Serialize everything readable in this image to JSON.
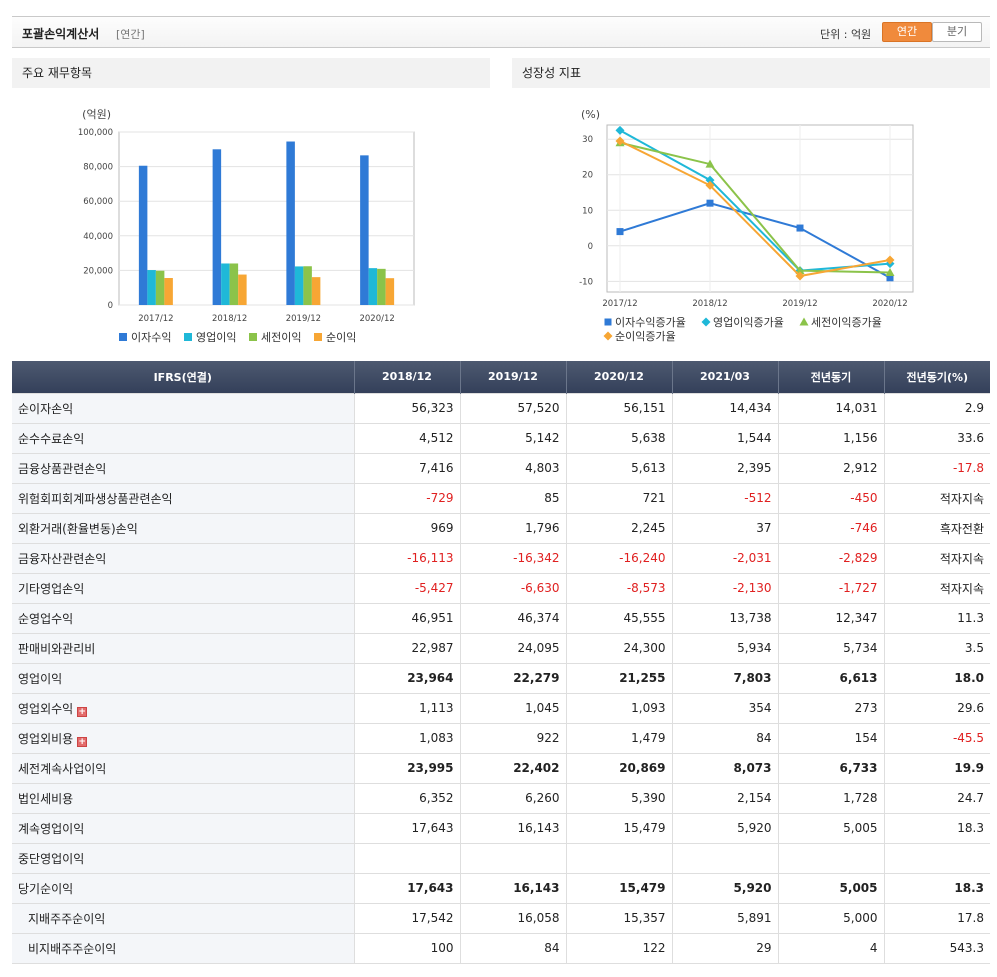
{
  "header": {
    "title": "포괄손익계산서",
    "period_tag": "[연간]",
    "unit_label": "단위 : 억원",
    "btn_annual": "연간",
    "btn_quarter": "분기"
  },
  "panels": {
    "left_title": "주요 재무항목",
    "right_title": "성장성 지표"
  },
  "chart_data": [
    {
      "type": "bar",
      "title": "주요 재무항목",
      "ylabel": "(억원)",
      "ylim": [
        0,
        100000
      ],
      "yticks": [
        0,
        20000,
        40000,
        60000,
        80000,
        100000
      ],
      "ytick_labels": [
        "0",
        "20,000",
        "40,000",
        "60,000",
        "80,000",
        "100,000"
      ],
      "categories": [
        "2017/12",
        "2018/12",
        "2019/12",
        "2020/12"
      ],
      "legend_position": "bottom",
      "grid": true,
      "series": [
        {
          "name": "이자수익",
          "color": "#2f7ad6",
          "values": [
            80500,
            90000,
            94500,
            86500
          ]
        },
        {
          "name": "영업이익",
          "color": "#1fb8d8",
          "values": [
            20200,
            24000,
            22300,
            21300
          ]
        },
        {
          "name": "세전이익",
          "color": "#8bc34a",
          "values": [
            19800,
            24000,
            22400,
            20900
          ]
        },
        {
          "name": "순이익",
          "color": "#f7a634",
          "values": [
            15600,
            17600,
            16100,
            15500
          ]
        }
      ]
    },
    {
      "type": "line",
      "title": "성장성 지표",
      "ylabel": "(%)",
      "ylim": [
        -13,
        34
      ],
      "yticks": [
        -10,
        0,
        10,
        20,
        30
      ],
      "categories": [
        "2017/12",
        "2018/12",
        "2019/12",
        "2020/12"
      ],
      "legend_position": "bottom",
      "grid": true,
      "series": [
        {
          "name": "이자수익증가율",
          "color": "#2f7ad6",
          "marker": "square",
          "values": [
            4,
            12,
            5,
            -9
          ]
        },
        {
          "name": "영업이익증가율",
          "color": "#1fb8d8",
          "marker": "diamond",
          "values": [
            32.5,
            18.5,
            -7,
            -5
          ]
        },
        {
          "name": "세전이익증가율",
          "color": "#8bc34a",
          "marker": "triangle",
          "values": [
            29,
            23,
            -7,
            -7.5
          ]
        },
        {
          "name": "순이익증가율",
          "color": "#f7a634",
          "marker": "diamond",
          "values": [
            29.5,
            17,
            -8.5,
            -4
          ]
        }
      ]
    }
  ],
  "table": {
    "headers": [
      "IFRS(연결)",
      "2018/12",
      "2019/12",
      "2020/12",
      "2021/03",
      "전년동기",
      "전년동기(%)"
    ],
    "rows": [
      {
        "label": "순이자손익",
        "values": [
          "56,323",
          "57,520",
          "56,151",
          "14,434",
          "14,031",
          "2.9"
        ]
      },
      {
        "label": "순수수료손익",
        "values": [
          "4,512",
          "5,142",
          "5,638",
          "1,544",
          "1,156",
          "33.6"
        ]
      },
      {
        "label": "금융상품관련손익",
        "values": [
          "7,416",
          "4,803",
          "5,613",
          "2,395",
          "2,912",
          "-17.8"
        ]
      },
      {
        "label": "위험회피회계파생상품관련손익",
        "values": [
          "-729",
          "85",
          "721",
          "-512",
          "-450",
          "적자지속"
        ]
      },
      {
        "label": "외환거래(환율변동)손익",
        "values": [
          "969",
          "1,796",
          "2,245",
          "37",
          "-746",
          "흑자전환"
        ]
      },
      {
        "label": "금융자산관련손익",
        "values": [
          "-16,113",
          "-16,342",
          "-16,240",
          "-2,031",
          "-2,829",
          "적자지속"
        ]
      },
      {
        "label": "기타영업손익",
        "values": [
          "-5,427",
          "-6,630",
          "-8,573",
          "-2,130",
          "-1,727",
          "적자지속"
        ]
      },
      {
        "label": "순영업수익",
        "values": [
          "46,951",
          "46,374",
          "45,555",
          "13,738",
          "12,347",
          "11.3"
        ]
      },
      {
        "label": "판매비와관리비",
        "values": [
          "22,987",
          "24,095",
          "24,300",
          "5,934",
          "5,734",
          "3.5"
        ]
      },
      {
        "label": "영업이익",
        "bold": true,
        "values": [
          "23,964",
          "22,279",
          "21,255",
          "7,803",
          "6,613",
          "18.0"
        ]
      },
      {
        "label": "영업외수익",
        "expand": true,
        "values": [
          "1,113",
          "1,045",
          "1,093",
          "354",
          "273",
          "29.6"
        ]
      },
      {
        "label": "영업외비용",
        "expand": true,
        "values": [
          "1,083",
          "922",
          "1,479",
          "84",
          "154",
          "-45.5"
        ]
      },
      {
        "label": "세전계속사업이익",
        "bold": true,
        "values": [
          "23,995",
          "22,402",
          "20,869",
          "8,073",
          "6,733",
          "19.9"
        ]
      },
      {
        "label": "법인세비용",
        "values": [
          "6,352",
          "6,260",
          "5,390",
          "2,154",
          "1,728",
          "24.7"
        ]
      },
      {
        "label": "계속영업이익",
        "values": [
          "17,643",
          "16,143",
          "15,479",
          "5,920",
          "5,005",
          "18.3"
        ]
      },
      {
        "label": "중단영업이익",
        "values": [
          "",
          "",
          "",
          "",
          "",
          ""
        ]
      },
      {
        "label": "당기순이익",
        "bold": true,
        "values": [
          "17,643",
          "16,143",
          "15,479",
          "5,920",
          "5,005",
          "18.3"
        ]
      },
      {
        "label": "지배주주순이익",
        "indent": true,
        "values": [
          "17,542",
          "16,058",
          "15,357",
          "5,891",
          "5,000",
          "17.8"
        ]
      },
      {
        "label": "비지배주주순이익",
        "indent": true,
        "values": [
          "100",
          "84",
          "122",
          "29",
          "4",
          "543.3"
        ]
      }
    ]
  }
}
